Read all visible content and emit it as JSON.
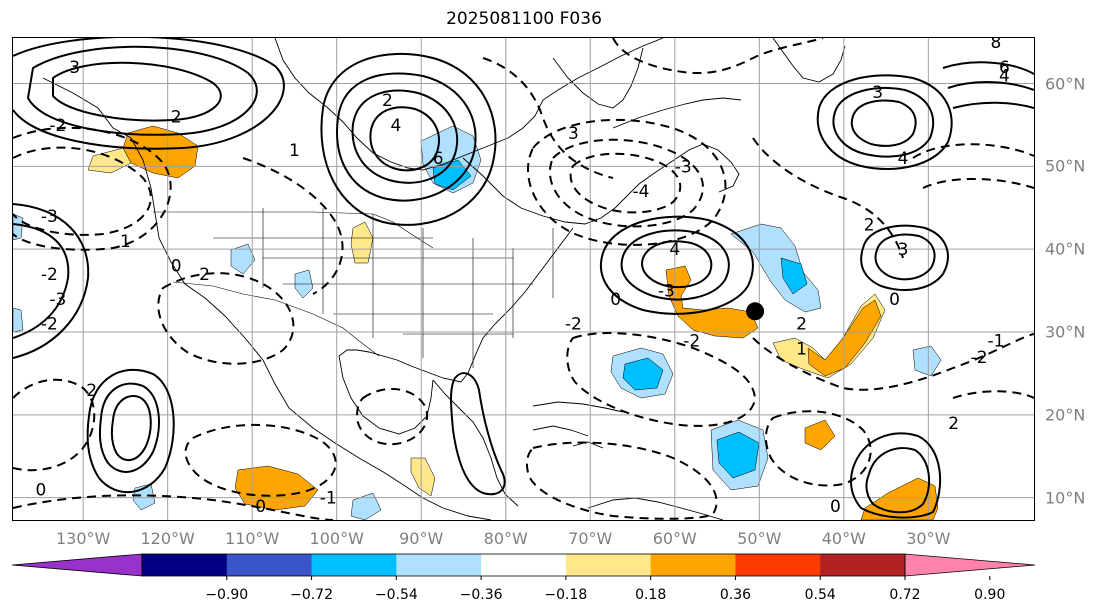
{
  "title": "2025081100 F036",
  "lon_ticks": [
    {
      "label": "130°W",
      "lon": -130
    },
    {
      "label": "120°W",
      "lon": -120
    },
    {
      "label": "110°W",
      "lon": -110
    },
    {
      "label": "100°W",
      "lon": -100
    },
    {
      "label": "90°W",
      "lon": -90
    },
    {
      "label": "80°W",
      "lon": -80
    },
    {
      "label": "70°W",
      "lon": -70
    },
    {
      "label": "60°W",
      "lon": -60
    },
    {
      "label": "50°W",
      "lon": -50
    },
    {
      "label": "40°W",
      "lon": -40
    },
    {
      "label": "30°W",
      "lon": -30
    }
  ],
  "lat_ticks": [
    {
      "label": "60°N",
      "lat": 60
    },
    {
      "label": "50°N",
      "lat": 50
    },
    {
      "label": "40°N",
      "lat": 40
    },
    {
      "label": "30°N",
      "lat": 30
    },
    {
      "label": "20°N",
      "lat": 20
    },
    {
      "label": "10°N",
      "lat": 10
    }
  ],
  "colorbar": {
    "ticks": [
      "−0.90",
      "−0.72",
      "−0.54",
      "−0.36",
      "−0.18",
      "0.18",
      "0.36",
      "0.54",
      "0.72",
      "0.90"
    ],
    "colors": [
      "#9932cc",
      "#000080",
      "#3a55c8",
      "#00bfff",
      "#afe1ff",
      "#ffffff",
      "#ffe88a",
      "#ffa500",
      "#ff3c00",
      "#b22222",
      "#ff82aa"
    ]
  },
  "contour_labels": [
    {
      "text": "3",
      "lon": -131,
      "lat": 62
    },
    {
      "text": "2",
      "lon": -119,
      "lat": 56
    },
    {
      "text": "-2",
      "lon": -133,
      "lat": 55
    },
    {
      "text": "1",
      "lon": -105,
      "lat": 52
    },
    {
      "text": "-3",
      "lon": -134,
      "lat": 44
    },
    {
      "text": "-2",
      "lon": -134,
      "lat": 37
    },
    {
      "text": "-3",
      "lon": -133,
      "lat": 34
    },
    {
      "text": "-2",
      "lon": -134,
      "lat": 31
    },
    {
      "text": "1",
      "lon": -125,
      "lat": 41
    },
    {
      "text": "0",
      "lon": -119,
      "lat": 38
    },
    {
      "text": "-2",
      "lon": -116,
      "lat": 37
    },
    {
      "text": "4",
      "lon": -93,
      "lat": 55
    },
    {
      "text": "6",
      "lon": -88,
      "lat": 51
    },
    {
      "text": "2",
      "lon": -94,
      "lat": 58
    },
    {
      "text": "3",
      "lon": -72,
      "lat": 54
    },
    {
      "text": "-4",
      "lon": -64,
      "lat": 47
    },
    {
      "text": "-3",
      "lon": -59,
      "lat": 50
    },
    {
      "text": "4",
      "lon": -60,
      "lat": 40
    },
    {
      "text": "-3",
      "lon": -61,
      "lat": 35
    },
    {
      "text": "0",
      "lon": -67,
      "lat": 34
    },
    {
      "text": "-2",
      "lon": -72,
      "lat": 31
    },
    {
      "text": "-2",
      "lon": -58,
      "lat": 29
    },
    {
      "text": "2",
      "lon": -45,
      "lat": 31
    },
    {
      "text": "1",
      "lon": -45,
      "lat": 28
    },
    {
      "text": "3",
      "lon": -36,
      "lat": 59
    },
    {
      "text": "4",
      "lon": -33,
      "lat": 51
    },
    {
      "text": "3",
      "lon": -33,
      "lat": 40
    },
    {
      "text": "2",
      "lon": -37,
      "lat": 43
    },
    {
      "text": "0",
      "lon": -34,
      "lat": 34
    },
    {
      "text": "-1",
      "lon": -22,
      "lat": 29
    },
    {
      "text": "-2",
      "lon": -24,
      "lat": 27
    },
    {
      "text": "8",
      "lon": -22,
      "lat": 65
    },
    {
      "text": "6",
      "lon": -21,
      "lat": 62
    },
    {
      "text": "4",
      "lon": -21,
      "lat": 61
    },
    {
      "text": "2",
      "lon": -129,
      "lat": 23
    },
    {
      "text": "0",
      "lon": -135,
      "lat": 11
    },
    {
      "text": "0",
      "lon": -109,
      "lat": 9
    },
    {
      "text": "-1",
      "lon": -101,
      "lat": 10
    },
    {
      "text": "2",
      "lon": -27,
      "lat": 19
    },
    {
      "text": "0",
      "lon": -41,
      "lat": 9
    }
  ],
  "storm_marker": {
    "lon": -50.5,
    "lat": 32.5
  }
}
